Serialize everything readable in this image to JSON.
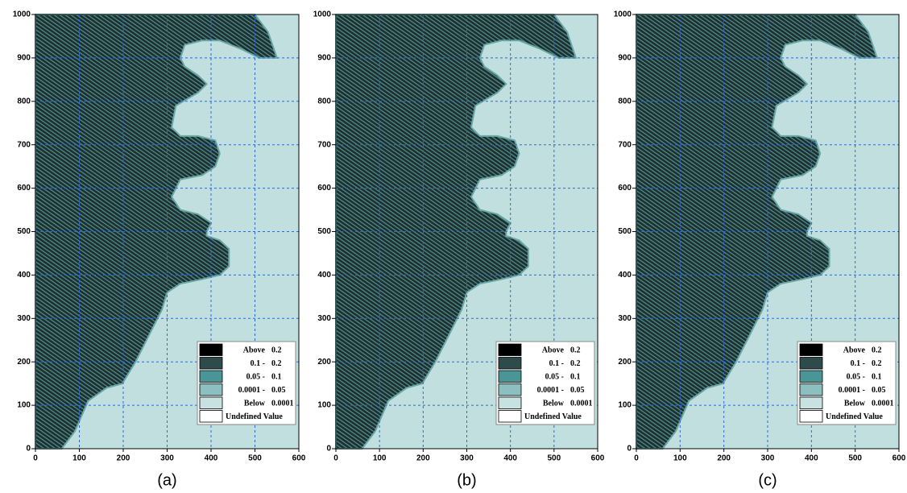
{
  "chart_data": [
    {
      "type": "field",
      "caption": "(a)",
      "xlim": [
        0,
        600
      ],
      "ylim": [
        0,
        1000
      ],
      "xticks": [
        0,
        100,
        200,
        300,
        400,
        500,
        600
      ],
      "yticks": [
        0,
        100,
        200,
        300,
        400,
        500,
        600,
        700,
        800,
        900,
        1000
      ],
      "grid": true,
      "legend_position": "lower right",
      "background": "#c2dfdf",
      "legend": [
        {
          "labels": [
            "Above",
            "0.2"
          ],
          "color": "#000000"
        },
        {
          "labels": [
            "0.1 -",
            "0.2"
          ],
          "color": "#2f4a4a"
        },
        {
          "labels": [
            "0.05 -",
            "0.1"
          ],
          "color": "#4a9696"
        },
        {
          "labels": [
            "0.0001 -",
            "0.05"
          ],
          "color": "#8cbfbf"
        },
        {
          "labels": [
            "Below",
            "0.0001"
          ],
          "color": "#c8e2e2"
        },
        {
          "labels": [
            "Undefined Value"
          ],
          "color": "#ffffff"
        }
      ]
    },
    {
      "type": "field",
      "caption": "(b)",
      "xlim": [
        0,
        600
      ],
      "ylim": [
        0,
        1000
      ],
      "xticks": [
        0,
        100,
        200,
        300,
        400,
        500,
        600
      ],
      "yticks": [
        0,
        100,
        200,
        300,
        400,
        500,
        600,
        700,
        800,
        900,
        1000
      ],
      "grid": true,
      "legend_position": "lower right",
      "background": "#c2dfdf",
      "legend": [
        {
          "labels": [
            "Above",
            "0.2"
          ],
          "color": "#000000"
        },
        {
          "labels": [
            "0.1 -",
            "0.2"
          ],
          "color": "#2f4a4a"
        },
        {
          "labels": [
            "0.05 -",
            "0.1"
          ],
          "color": "#4a9696"
        },
        {
          "labels": [
            "0.0001 -",
            "0.05"
          ],
          "color": "#8cbfbf"
        },
        {
          "labels": [
            "Below",
            "0.0001"
          ],
          "color": "#c8e2e2"
        },
        {
          "labels": [
            "Undefined Value"
          ],
          "color": "#ffffff"
        }
      ]
    },
    {
      "type": "field",
      "caption": "(c)",
      "xlim": [
        0,
        600
      ],
      "ylim": [
        0,
        1000
      ],
      "xticks": [
        0,
        100,
        200,
        300,
        400,
        500,
        600
      ],
      "yticks": [
        0,
        100,
        200,
        300,
        400,
        500,
        600,
        700,
        800,
        900,
        1000
      ],
      "grid": true,
      "legend_position": "lower right",
      "background": "#c2dfdf",
      "legend": [
        {
          "labels": [
            "Above",
            "0.2"
          ],
          "color": "#000000"
        },
        {
          "labels": [
            "0.1 -",
            "0.2"
          ],
          "color": "#2f4a4a"
        },
        {
          "labels": [
            "0.05 -",
            "0.1"
          ],
          "color": "#4a9696"
        },
        {
          "labels": [
            "0.0001 -",
            "0.05"
          ],
          "color": "#8cbfbf"
        },
        {
          "labels": [
            "Below",
            "0.0001"
          ],
          "color": "#c8e2e2"
        },
        {
          "labels": [
            "Undefined Value"
          ],
          "color": "#ffffff"
        }
      ]
    }
  ]
}
